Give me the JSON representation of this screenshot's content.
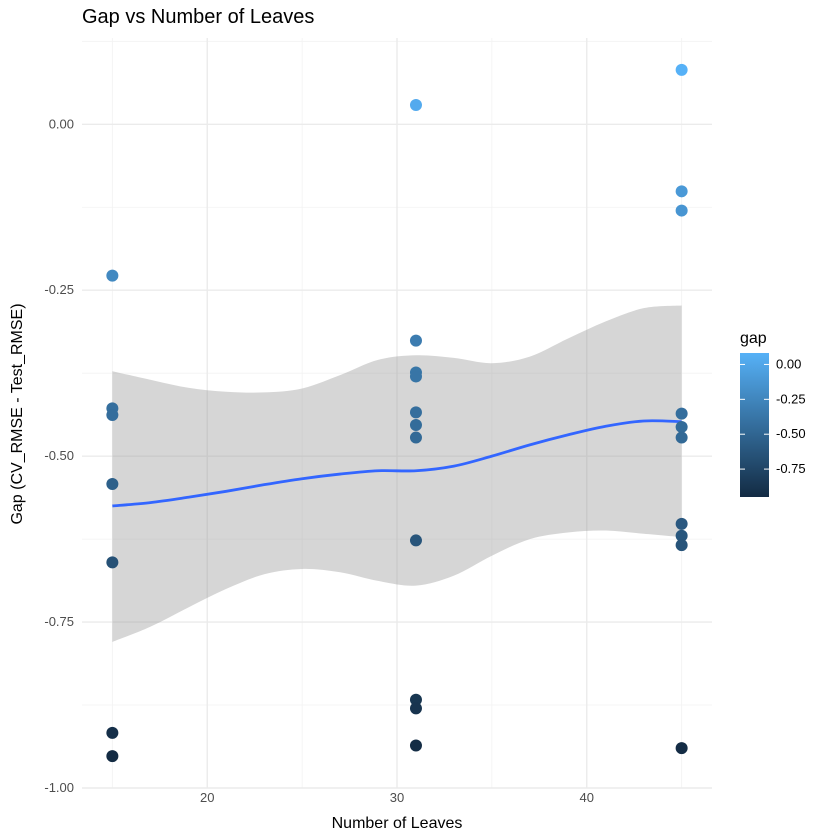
{
  "chart_data": {
    "type": "scatter",
    "title": "Gap vs Number of Leaves",
    "xlabel": "Number of Leaves",
    "ylabel": "Gap (CV_RMSE - Test_RMSE)",
    "xlim": [
      13.4,
      46.6
    ],
    "ylim": [
      -1.0,
      0.13
    ],
    "x_ticks": [
      20,
      30,
      40
    ],
    "x_tick_labels": [
      "20",
      "30",
      "40"
    ],
    "y_ticks": [
      -1.0,
      -0.75,
      -0.5,
      -0.25,
      0.0
    ],
    "y_tick_labels": [
      "-1.00",
      "-0.75",
      "-0.50",
      "-0.25",
      "0.00"
    ],
    "grid": true,
    "points": [
      {
        "x": 15,
        "y": -0.228
      },
      {
        "x": 15,
        "y": -0.428
      },
      {
        "x": 15,
        "y": -0.438
      },
      {
        "x": 15,
        "y": -0.542
      },
      {
        "x": 15,
        "y": -0.66
      },
      {
        "x": 15,
        "y": -0.917
      },
      {
        "x": 15,
        "y": -0.952
      },
      {
        "x": 31,
        "y": 0.029
      },
      {
        "x": 31,
        "y": -0.326
      },
      {
        "x": 31,
        "y": -0.374
      },
      {
        "x": 31,
        "y": -0.38
      },
      {
        "x": 31,
        "y": -0.434
      },
      {
        "x": 31,
        "y": -0.453
      },
      {
        "x": 31,
        "y": -0.472
      },
      {
        "x": 31,
        "y": -0.627
      },
      {
        "x": 31,
        "y": -0.867
      },
      {
        "x": 31,
        "y": -0.88
      },
      {
        "x": 31,
        "y": -0.936
      },
      {
        "x": 45,
        "y": 0.082
      },
      {
        "x": 45,
        "y": -0.101
      },
      {
        "x": 45,
        "y": -0.13
      },
      {
        "x": 45,
        "y": -0.436
      },
      {
        "x": 45,
        "y": -0.456
      },
      {
        "x": 45,
        "y": -0.472
      },
      {
        "x": 45,
        "y": -0.602
      },
      {
        "x": 45,
        "y": -0.62
      },
      {
        "x": 45,
        "y": -0.634
      },
      {
        "x": 45,
        "y": -0.94
      }
    ],
    "smooth": {
      "x": [
        15,
        17,
        19,
        21,
        23,
        25,
        27,
        29,
        31,
        33,
        35,
        37,
        39,
        41,
        43,
        45
      ],
      "y": [
        -0.575,
        -0.57,
        -0.562,
        -0.553,
        -0.543,
        -0.534,
        -0.527,
        -0.522,
        -0.522,
        -0.515,
        -0.5,
        -0.483,
        -0.468,
        -0.455,
        -0.447,
        -0.448
      ],
      "lower": [
        -0.78,
        -0.757,
        -0.728,
        -0.7,
        -0.678,
        -0.67,
        -0.675,
        -0.688,
        -0.695,
        -0.68,
        -0.65,
        -0.625,
        -0.615,
        -0.612,
        -0.617,
        -0.622
      ],
      "upper": [
        -0.372,
        -0.385,
        -0.397,
        -0.403,
        -0.404,
        -0.398,
        -0.378,
        -0.355,
        -0.348,
        -0.352,
        -0.36,
        -0.35,
        -0.323,
        -0.297,
        -0.277,
        -0.273
      ]
    },
    "point_color_scale": {
      "variable": "gap",
      "legend_title": "gap",
      "low_color": "#132B43",
      "high_color": "#56B1F7",
      "range": [
        -0.95,
        0.082
      ],
      "legend_ticks": [
        0.0,
        -0.25,
        -0.5,
        -0.75
      ],
      "legend_tick_labels": [
        "0.00",
        "-0.25",
        "-0.50",
        "-0.75"
      ]
    },
    "smooth_color": "#3366FF",
    "ribbon_color": "#999999"
  }
}
